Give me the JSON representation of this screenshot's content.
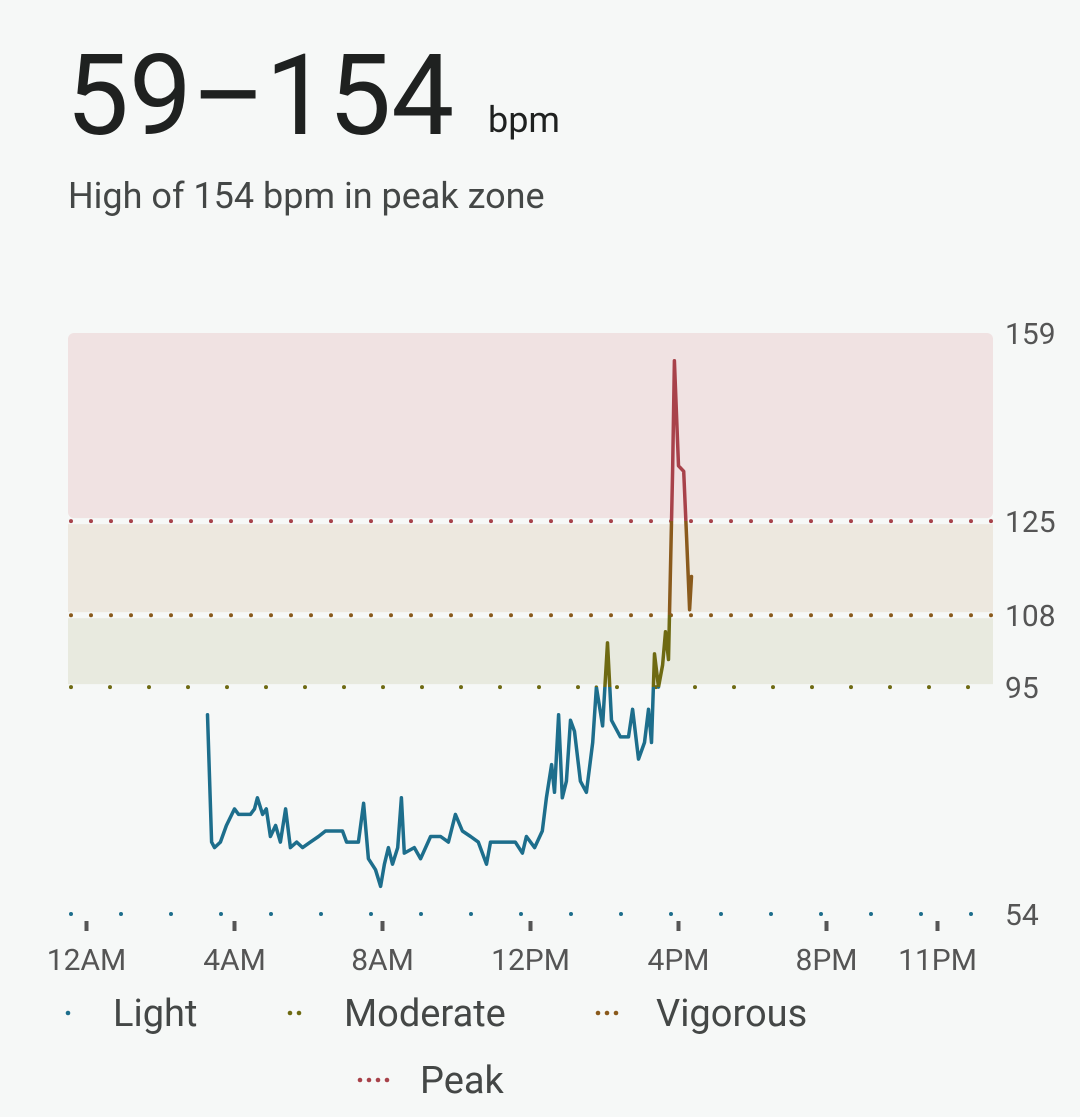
{
  "header": {
    "range": "59–154",
    "unit": "bpm",
    "subtitle": "High of 154 bpm in peak zone"
  },
  "chart_data": {
    "type": "line",
    "x": [
      3.27,
      3.38,
      3.46,
      3.62,
      3.78,
      4.0,
      4.11,
      4.43,
      4.54,
      4.62,
      4.76,
      4.86,
      4.97,
      5.11,
      5.24,
      5.38,
      5.51,
      5.68,
      5.84,
      6.05,
      6.27,
      6.46,
      6.73,
      6.92,
      7.03,
      7.35,
      7.49,
      7.62,
      7.81,
      7.95,
      8.05,
      8.16,
      8.27,
      8.41,
      8.51,
      8.59,
      8.86,
      9.03,
      9.3,
      9.57,
      9.78,
      9.97,
      10.16,
      10.38,
      10.59,
      10.81,
      10.92,
      11.14,
      11.59,
      11.78,
      11.89,
      12.11,
      12.32,
      12.43,
      12.57,
      12.65,
      12.76,
      12.86,
      12.97,
      13.08,
      13.19,
      13.35,
      13.51,
      13.68,
      13.78,
      13.95,
      14.08,
      14.19,
      14.43,
      14.65,
      14.76,
      14.92,
      15.08,
      15.19,
      15.27,
      15.35,
      15.46,
      15.57,
      15.65,
      15.73,
      15.84,
      15.89,
      16.0,
      16.14,
      16.22,
      16.3,
      16.35
    ],
    "series": [
      {
        "values": [
          90,
          67,
          66,
          67,
          70,
          73,
          72,
          72,
          73,
          75,
          72,
          73,
          68,
          70,
          67,
          73,
          66,
          67,
          66,
          67,
          68,
          69,
          69,
          69,
          67,
          67,
          74,
          64,
          62,
          59,
          63,
          66,
          63,
          66,
          75,
          65,
          66,
          64,
          68,
          68,
          67,
          72,
          69,
          68,
          67,
          63,
          67,
          67,
          67,
          65,
          68,
          66,
          69,
          75,
          81,
          76,
          90,
          75,
          78,
          89,
          87,
          78,
          76,
          85,
          95,
          88,
          103,
          89,
          86,
          86,
          91,
          82,
          85,
          91,
          85,
          101,
          95,
          99,
          105,
          100,
          134,
          154,
          135,
          134,
          122,
          109,
          115
        ]
      }
    ],
    "xlim": [
      -0.5,
      24.5
    ],
    "xticks": [
      {
        "value": 0,
        "label": "12AM"
      },
      {
        "value": 4,
        "label": "4AM"
      },
      {
        "value": 8,
        "label": "8AM"
      },
      {
        "value": 12,
        "label": "12PM"
      },
      {
        "value": 16,
        "label": "4PM"
      },
      {
        "value": 20,
        "label": "8PM"
      },
      {
        "value": 23,
        "label": "11PM"
      }
    ],
    "ylim": [
      54,
      159
    ],
    "yticks": [
      54,
      95,
      108,
      125,
      159
    ],
    "zones": [
      {
        "name": "Light",
        "from": 54,
        "color": "#1d6e8c"
      },
      {
        "name": "Moderate",
        "from": 95,
        "color": "#6e6a12",
        "band_color": "#e8eadf"
      },
      {
        "name": "Vigorous",
        "from": 108,
        "color": "#8a5a1c",
        "band_color": "#ede8df"
      },
      {
        "name": "Peak",
        "from": 125,
        "color": "#a8424a",
        "band_color": "#f0e2e2"
      }
    ]
  }
}
